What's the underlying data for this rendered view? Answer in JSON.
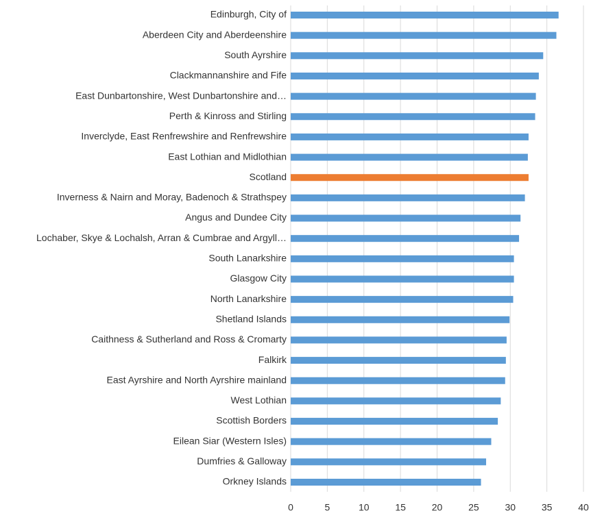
{
  "chart_data": {
    "type": "barh",
    "categories": [
      "Edinburgh, City of",
      "Aberdeen City and Aberdeenshire",
      "South Ayrshire",
      "Clackmannanshire and Fife",
      "East Dunbartonshire, West Dunbartonshire and…",
      "Perth & Kinross and Stirling",
      "Inverclyde, East Renfrewshire and Renfrewshire",
      "East Lothian and Midlothian",
      "Scotland",
      "Inverness & Nairn and Moray, Badenoch & Strathspey",
      "Angus and Dundee City",
      "Lochaber, Skye & Lochalsh, Arran & Cumbrae and Argyll…",
      "South Lanarkshire",
      "Glasgow City",
      "North Lanarkshire",
      "Shetland Islands",
      "Caithness & Sutherland and Ross & Cromarty",
      "Falkirk",
      "East Ayrshire and North Ayrshire mainland",
      "West Lothian",
      "Scottish Borders",
      "Eilean Siar (Western Isles)",
      "Dumfries & Galloway",
      "Orkney Islands"
    ],
    "values": [
      36.6,
      36.3,
      34.5,
      33.9,
      33.5,
      33.4,
      32.5,
      32.4,
      32.5,
      32.0,
      31.4,
      31.2,
      30.5,
      30.5,
      30.4,
      29.9,
      29.5,
      29.4,
      29.3,
      28.7,
      28.3,
      27.4,
      26.7,
      26.0
    ],
    "colors": [
      "#5b9bd5",
      "#5b9bd5",
      "#5b9bd5",
      "#5b9bd5",
      "#5b9bd5",
      "#5b9bd5",
      "#5b9bd5",
      "#5b9bd5",
      "#ed7d31",
      "#5b9bd5",
      "#5b9bd5",
      "#5b9bd5",
      "#5b9bd5",
      "#5b9bd5",
      "#5b9bd5",
      "#5b9bd5",
      "#5b9bd5",
      "#5b9bd5",
      "#5b9bd5",
      "#5b9bd5",
      "#5b9bd5",
      "#5b9bd5",
      "#5b9bd5",
      "#5b9bd5"
    ],
    "xlim": [
      0,
      40
    ],
    "xticks": [
      0,
      5,
      10,
      15,
      20,
      25,
      30,
      35,
      40
    ],
    "grid": true
  }
}
